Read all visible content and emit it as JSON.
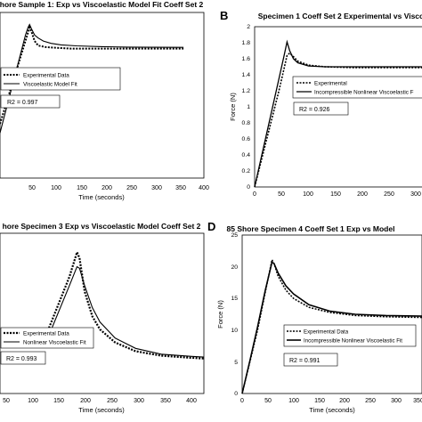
{
  "panels": [
    {
      "letter": "",
      "title": "hore Sample 1: Exp vs Viscoelastic Model Fit Coeff Set 2",
      "xlabel": "Time (seconds)",
      "ylabel": "",
      "r2": "R2 = 0.997",
      "legend": [
        "Experimental Data",
        "Viscoelastic Model Fit"
      ]
    },
    {
      "letter": "B",
      "title": "Specimen 1 Coeff Set 2 Experimental vs Visco",
      "xlabel": "",
      "ylabel": "Force (N)",
      "r2": "R2 = 0.926",
      "legend": [
        "Experimental",
        "Incompressible Nonlinear Viscoelastic F"
      ]
    },
    {
      "letter": "",
      "title": "hore Specimen 3 Exp vs Viscoelastic Model Coeff Set 2",
      "xlabel": "Time (seconds)",
      "ylabel": "",
      "r2": "R2 = 0.993",
      "legend": [
        "Experimental Data",
        "Nonlinear Viscoelastic Fit"
      ]
    },
    {
      "letter": "D",
      "title": "85 Shore Specimen 4 Coeff Set 1 Exp vs Model",
      "xlabel": "Time (seconds)",
      "ylabel": "Force (N)",
      "r2": "R2 = 0.991",
      "legend": [
        "Experimental Data",
        "Incompressible Nonlinear Viscoelastic Fit"
      ]
    }
  ],
  "chart_data": [
    {
      "type": "line",
      "title": "hore Sample 1: Exp vs Viscoelastic Model Fit Coeff Set 2",
      "xlabel": "Time (seconds)",
      "ylabel": "",
      "xlim": [
        0,
        400
      ],
      "x_ticks": [
        "50",
        "100",
        "150",
        "200",
        "250",
        "300",
        "350",
        "400"
      ],
      "y_ticks": [],
      "grid": false,
      "legend_position": "middle-left",
      "series": [
        {
          "name": "Experimental Data",
          "style": "dotted",
          "x": [
            0,
            58,
            62,
            68,
            75,
            90,
            110,
            140,
            180,
            250,
            360
          ],
          "y": [
            0.36,
            1.0,
            0.97,
            0.91,
            0.88,
            0.87,
            0.865,
            0.86,
            0.86,
            0.86,
            0.86
          ]
        },
        {
          "name": "Viscoelastic Model Fit",
          "style": "solid",
          "x": [
            0,
            50,
            55,
            58,
            62,
            68,
            75,
            85,
            100,
            120,
            150,
            200,
            250,
            300,
            360
          ],
          "y": [
            0.3,
            0.95,
            1.0,
            1.02,
            0.99,
            0.95,
            0.93,
            0.91,
            0.895,
            0.885,
            0.878,
            0.873,
            0.87,
            0.869,
            0.868
          ]
        }
      ]
    },
    {
      "type": "line",
      "title": "Specimen 1 Coeff Set 2 Experimental vs Visco",
      "xlabel": "",
      "ylabel": "Force (N)",
      "xlim": [
        0,
        330
      ],
      "ylim": [
        0,
        2
      ],
      "x_ticks": [
        "0",
        "50",
        "100",
        "150",
        "200",
        "250",
        "300"
      ],
      "y_ticks": [
        "0",
        "0.2",
        "0.4",
        "0.6",
        "0.8",
        "1",
        "1.2",
        "1.4",
        "1.6",
        "1.8",
        "2"
      ],
      "grid": false,
      "legend_position": "bottom-right",
      "series": [
        {
          "name": "Experimental",
          "style": "dotted",
          "x": [
            0,
            15,
            30,
            45,
            60,
            65,
            70,
            80,
            100,
            130,
            180,
            250,
            330
          ],
          "y": [
            0,
            0.4,
            0.8,
            1.2,
            1.64,
            1.67,
            1.64,
            1.57,
            1.52,
            1.5,
            1.49,
            1.49,
            1.49
          ]
        },
        {
          "name": "Incompressible Nonlinear Viscoelastic F",
          "style": "solid",
          "x": [
            0,
            15,
            30,
            45,
            55,
            60,
            65,
            72,
            80,
            100,
            130,
            180,
            250,
            330
          ],
          "y": [
            0,
            0.45,
            0.9,
            1.35,
            1.65,
            1.81,
            1.7,
            1.6,
            1.55,
            1.51,
            1.5,
            1.5,
            1.5,
            1.5
          ]
        }
      ]
    },
    {
      "type": "line",
      "title": "hore Specimen 3 Exp vs Viscoelastic Model Coeff Set 2",
      "xlabel": "Time (seconds)",
      "ylabel": "",
      "xlim": [
        0,
        400
      ],
      "x_ticks": [
        "50",
        "100",
        "150",
        "200",
        "250",
        "300",
        "350",
        "400"
      ],
      "y_ticks": [],
      "grid": false,
      "legend_position": "bottom-left",
      "series": [
        {
          "name": "Experimental Data",
          "style": "dotted",
          "x": [
            0,
            40,
            55,
            60,
            70,
            85,
            100,
            130,
            170,
            220,
            280,
            360
          ],
          "y": [
            0.45,
            0.8,
            0.97,
            0.93,
            0.7,
            0.53,
            0.44,
            0.35,
            0.29,
            0.26,
            0.245,
            0.24
          ]
        },
        {
          "name": "Nonlinear Viscoelastic Fit",
          "style": "solid",
          "x": [
            0,
            40,
            55,
            60,
            70,
            85,
            100,
            130,
            170,
            220,
            280,
            360
          ],
          "y": [
            0.4,
            0.74,
            0.87,
            0.86,
            0.74,
            0.59,
            0.49,
            0.38,
            0.31,
            0.27,
            0.255,
            0.25
          ]
        }
      ]
    },
    {
      "type": "line",
      "title": "85 Shore Specimen 4 Coeff Set 1 Exp vs Model",
      "xlabel": "Time (seconds)",
      "ylabel": "Force (N)",
      "xlim": [
        0,
        350
      ],
      "ylim": [
        0,
        25
      ],
      "x_ticks": [
        "0",
        "50",
        "100",
        "150",
        "200",
        "250",
        "300",
        "350"
      ],
      "y_ticks": [
        "0",
        "5",
        "10",
        "15",
        "20",
        "25"
      ],
      "grid": false,
      "legend_position": "bottom-right",
      "series": [
        {
          "name": "Experimental Data",
          "style": "dotted",
          "x": [
            0,
            15,
            30,
            45,
            58,
            62,
            70,
            85,
            100,
            130,
            170,
            220,
            280,
            350
          ],
          "y": [
            0,
            5,
            10,
            16,
            21.1,
            20.5,
            18.5,
            16.3,
            15.0,
            13.6,
            12.8,
            12.3,
            12.1,
            12.0
          ]
        },
        {
          "name": "Incompressible Nonlinear Viscoelastic Fit",
          "style": "solid",
          "x": [
            0,
            15,
            30,
            45,
            58,
            62,
            70,
            85,
            100,
            130,
            170,
            220,
            280,
            350
          ],
          "y": [
            0,
            5.2,
            10.5,
            16.3,
            20.7,
            20.5,
            19.0,
            17.0,
            15.7,
            14.0,
            13.0,
            12.5,
            12.3,
            12.2
          ]
        }
      ]
    }
  ]
}
